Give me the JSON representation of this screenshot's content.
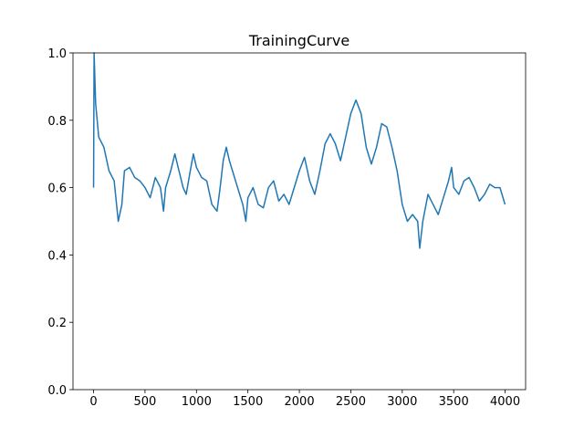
{
  "chart_data": {
    "type": "line",
    "title": "TrainingCurve",
    "x": [
      0,
      5,
      20,
      50,
      100,
      150,
      200,
      240,
      275,
      300,
      350,
      400,
      450,
      500,
      550,
      600,
      650,
      680,
      700,
      750,
      790,
      830,
      870,
      900,
      940,
      970,
      1000,
      1050,
      1100,
      1150,
      1200,
      1230,
      1260,
      1290,
      1320,
      1350,
      1400,
      1450,
      1480,
      1500,
      1550,
      1600,
      1650,
      1700,
      1750,
      1800,
      1850,
      1900,
      1950,
      2000,
      2050,
      2100,
      2150,
      2200,
      2250,
      2300,
      2350,
      2400,
      2450,
      2500,
      2550,
      2600,
      2650,
      2700,
      2750,
      2800,
      2850,
      2900,
      2950,
      3000,
      3050,
      3100,
      3150,
      3170,
      3200,
      3250,
      3300,
      3350,
      3400,
      3450,
      3480,
      3500,
      3550,
      3600,
      3650,
      3700,
      3750,
      3800,
      3850,
      3900,
      3950,
      3999
    ],
    "series": [
      {
        "color": "#1f77b4",
        "values": [
          0.6,
          1.0,
          0.85,
          0.75,
          0.72,
          0.65,
          0.62,
          0.5,
          0.55,
          0.65,
          0.66,
          0.63,
          0.62,
          0.6,
          0.57,
          0.63,
          0.6,
          0.53,
          0.6,
          0.65,
          0.7,
          0.65,
          0.6,
          0.58,
          0.65,
          0.7,
          0.66,
          0.63,
          0.62,
          0.55,
          0.53,
          0.6,
          0.68,
          0.72,
          0.68,
          0.65,
          0.6,
          0.55,
          0.5,
          0.57,
          0.6,
          0.55,
          0.54,
          0.6,
          0.62,
          0.56,
          0.58,
          0.55,
          0.6,
          0.65,
          0.69,
          0.62,
          0.58,
          0.65,
          0.73,
          0.76,
          0.73,
          0.68,
          0.75,
          0.82,
          0.86,
          0.82,
          0.72,
          0.67,
          0.72,
          0.79,
          0.78,
          0.72,
          0.65,
          0.55,
          0.5,
          0.52,
          0.5,
          0.42,
          0.5,
          0.58,
          0.55,
          0.52,
          0.57,
          0.62,
          0.66,
          0.6,
          0.58,
          0.62,
          0.63,
          0.6,
          0.56,
          0.58,
          0.61,
          0.6,
          0.6,
          0.55
        ]
      }
    ],
    "xlim": [
      -200,
      4199
    ],
    "ylim": [
      0,
      1
    ],
    "xticks": [
      0,
      500,
      1000,
      1500,
      2000,
      2500,
      3000,
      3500,
      4000
    ],
    "yticks": [
      {
        "value": 0,
        "label": "0.0"
      },
      0.2,
      0.4,
      0.6,
      0.8,
      {
        "value": 1,
        "label": "1.0"
      }
    ]
  }
}
